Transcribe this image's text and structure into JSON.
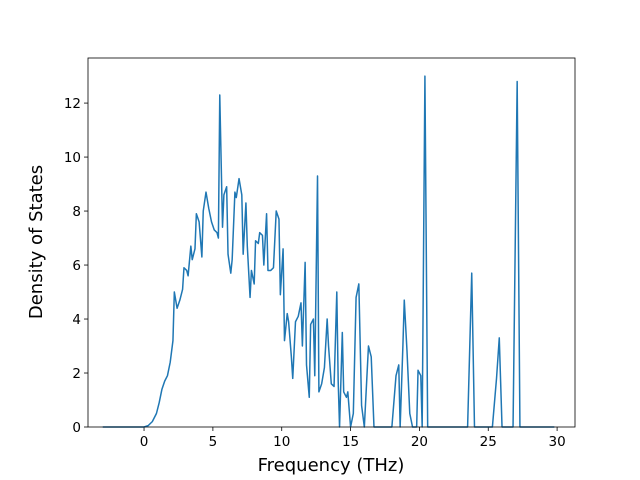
{
  "chart_data": {
    "type": "line",
    "x_label": "Frequency (THz)",
    "y_label": "Density of States",
    "xlim": [
      -4.07,
      31.3
    ],
    "ylim": [
      0,
      13.67
    ],
    "xticks": [
      0,
      5,
      10,
      15,
      20,
      25,
      30
    ],
    "yticks": [
      0,
      2,
      4,
      6,
      8,
      10,
      12
    ],
    "x": [
      -3,
      0,
      0.3,
      0.6,
      0.9,
      1.1,
      1.3,
      1.5,
      1.7,
      1.9,
      2.1,
      2.2,
      2.4,
      2.6,
      2.8,
      2.9,
      3.1,
      3.2,
      3.4,
      3.5,
      3.7,
      3.8,
      4.0,
      4.2,
      4.3,
      4.5,
      4.7,
      4.9,
      5.1,
      5.3,
      5.4,
      5.5,
      5.7,
      5.8,
      6.0,
      6.1,
      6.3,
      6.4,
      6.6,
      6.7,
      6.9,
      7.1,
      7.2,
      7.4,
      7.5,
      7.7,
      7.8,
      8.0,
      8.1,
      8.3,
      8.4,
      8.6,
      8.7,
      8.9,
      9.0,
      9.2,
      9.4,
      9.6,
      9.8,
      9.9,
      10.1,
      10.2,
      10.4,
      10.5,
      10.7,
      10.8,
      11.0,
      11.2,
      11.4,
      11.5,
      11.7,
      11.8,
      12.0,
      12.1,
      12.3,
      12.4,
      12.6,
      12.7,
      12.9,
      13.1,
      13.3,
      13.4,
      13.6,
      13.8,
      14.0,
      14.1,
      14.2,
      14.4,
      14.5,
      14.7,
      14.8,
      15.0,
      15.2,
      15.4,
      15.6,
      15.8,
      16.0,
      16.3,
      16.5,
      16.7,
      18.0,
      18.3,
      18.5,
      18.6,
      18.8,
      18.9,
      19.1,
      19.3,
      19.5,
      19.8,
      19.9,
      20.1,
      20.2,
      20.4,
      20.6,
      23.5,
      23.8,
      24.0,
      25.3,
      25.6,
      25.8,
      26.0,
      26.8,
      27.1,
      27.3,
      29.8
    ],
    "series": [
      {
        "color": "#1f77b4",
        "values": [
          0,
          0,
          0.05,
          0.2,
          0.5,
          0.9,
          1.4,
          1.7,
          1.9,
          2.4,
          3.2,
          5.0,
          4.4,
          4.7,
          5.1,
          5.9,
          5.8,
          5.6,
          6.7,
          6.2,
          6.6,
          7.9,
          7.6,
          6.3,
          8.0,
          8.7,
          8.1,
          7.6,
          7.3,
          7.2,
          7.0,
          12.3,
          7.4,
          8.6,
          8.9,
          6.4,
          5.7,
          6.2,
          8.7,
          8.5,
          9.2,
          8.6,
          6.4,
          8.3,
          6.7,
          4.8,
          5.8,
          5.3,
          6.9,
          6.8,
          7.2,
          7.1,
          6.0,
          7.9,
          5.8,
          5.8,
          5.9,
          8.0,
          7.7,
          4.9,
          6.6,
          3.2,
          4.2,
          3.9,
          2.6,
          1.8,
          3.9,
          4.1,
          4.6,
          3.0,
          6.1,
          2.3,
          1.1,
          3.8,
          4.0,
          1.9,
          9.3,
          1.3,
          1.6,
          2.2,
          4.0,
          3.0,
          1.6,
          1.5,
          5.0,
          1.7,
          0,
          3.5,
          1.3,
          1.1,
          1.3,
          0,
          0.5,
          4.8,
          5.3,
          0.8,
          0,
          3.0,
          2.6,
          0,
          0,
          1.9,
          2.3,
          0,
          3.0,
          4.7,
          2.8,
          0.5,
          0,
          0,
          2.1,
          1.9,
          0,
          13.0,
          0,
          0,
          5.7,
          0,
          0,
          1.8,
          3.3,
          0,
          0,
          12.8,
          0,
          0
        ]
      }
    ]
  }
}
